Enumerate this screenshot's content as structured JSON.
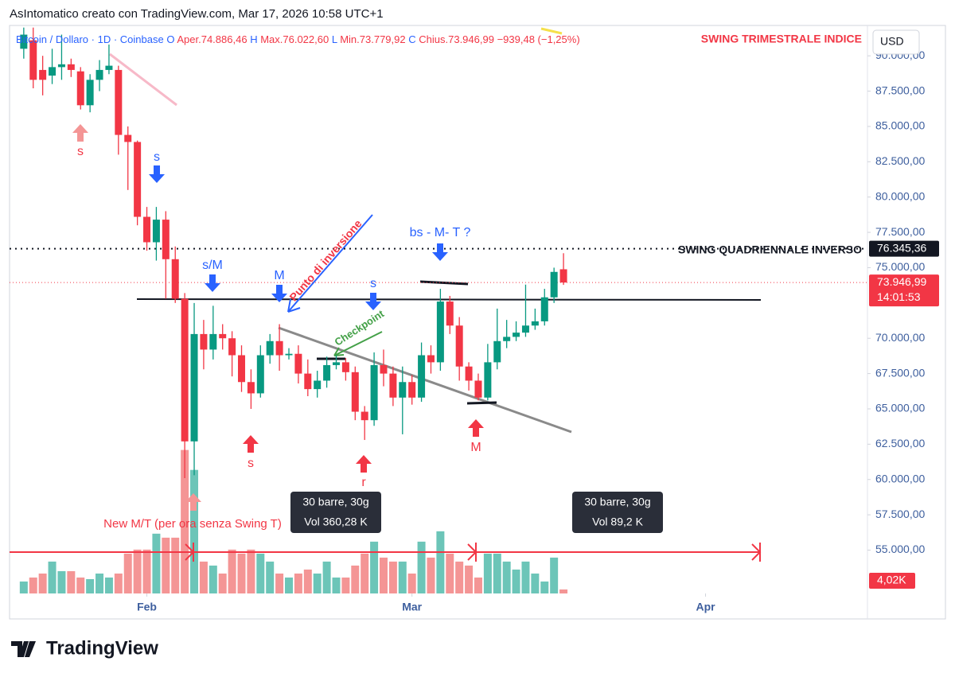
{
  "header": {
    "attribution": "AsIntomatico creato con TradingView.com, Mar 17, 2026 10:58 UTC+1"
  },
  "legend": {
    "symbol": "Bitcoin / Dollaro · 1D · Coinbase",
    "items": [
      "O",
      "Aper.74.886,46",
      "H",
      "Max.76.022,60",
      "L",
      "Min.73.779,92",
      "C",
      "Chius.73.946,99",
      "−939,48 (−1,25%)"
    ]
  },
  "currency": "USD",
  "chart_data": {
    "type": "candlestick",
    "x": [
      0,
      1,
      2,
      3,
      4,
      5,
      6,
      7,
      8,
      9,
      10,
      11,
      12,
      13,
      14,
      15,
      16,
      17,
      18,
      19,
      20,
      21,
      22,
      23,
      24,
      25,
      26,
      27,
      28,
      29,
      30,
      31,
      32,
      33,
      34,
      35,
      36,
      37,
      38,
      39,
      40,
      41,
      42,
      43,
      44,
      45,
      46,
      47,
      48,
      49,
      50,
      51,
      52,
      53,
      54,
      55,
      56,
      57
    ],
    "open": [
      90500,
      91100,
      89000,
      88600,
      89200,
      89400,
      88900,
      86500,
      88300,
      89000,
      89000,
      84400,
      83900,
      78600,
      76800,
      78400,
      75600,
      72800,
      62700,
      70300,
      69200,
      70300,
      70000,
      68800,
      66900,
      66100,
      68800,
      69800,
      68800,
      68900,
      67500,
      66400,
      67000,
      68100,
      68300,
      67600,
      64800,
      64200,
      68100,
      67500,
      65800,
      66900,
      65800,
      68800,
      68300,
      72600,
      70900,
      68000,
      67000,
      65800,
      68300,
      69800,
      70100,
      70400,
      70900,
      71200,
      72900,
      74886.46
    ],
    "high": [
      92000,
      92000,
      90000,
      90500,
      91500,
      89800,
      89200,
      88700,
      89700,
      90800,
      89300,
      85000,
      84000,
      79300,
      79300,
      79000,
      76500,
      73200,
      72500,
      71300,
      72300,
      71000,
      70500,
      69500,
      67800,
      69500,
      70300,
      71000,
      69300,
      69500,
      68500,
      67700,
      68700,
      68800,
      68600,
      68000,
      65200,
      69000,
      69200,
      68000,
      68000,
      67400,
      69700,
      69500,
      73500,
      73000,
      71500,
      68300,
      67500,
      69600,
      72100,
      71300,
      71200,
      73800,
      72100,
      73500,
      75000,
      76022.6
    ],
    "low": [
      89800,
      87700,
      87200,
      88000,
      88300,
      88500,
      86200,
      86000,
      87500,
      88700,
      83000,
      80500,
      78000,
      76200,
      75500,
      72800,
      72500,
      60100,
      60300,
      67800,
      68500,
      69200,
      67300,
      66200,
      65000,
      65800,
      68200,
      67700,
      68500,
      66800,
      65900,
      65800,
      66500,
      67800,
      67000,
      64200,
      62800,
      63800,
      66600,
      65200,
      63200,
      65300,
      65500,
      67500,
      67700,
      70300,
      67000,
      66300,
      65600,
      65600,
      67800,
      69300,
      69800,
      70100,
      70600,
      70900,
      72500,
      73779.92
    ],
    "close": [
      91500,
      88300,
      88300,
      89200,
      89400,
      89000,
      86500,
      88300,
      89000,
      89300,
      84400,
      83900,
      78600,
      76800,
      78400,
      75600,
      72800,
      62700,
      70300,
      69200,
      70300,
      70000,
      68800,
      66900,
      66100,
      68800,
      69800,
      68800,
      68900,
      67500,
      66400,
      67000,
      68100,
      68300,
      67600,
      64800,
      64200,
      68100,
      67500,
      65800,
      66900,
      65800,
      68800,
      68300,
      72600,
      70900,
      68000,
      67000,
      65800,
      68300,
      69800,
      70100,
      70400,
      70900,
      71200,
      72900,
      74700,
      73946.99
    ],
    "volume": [
      12,
      16,
      20,
      32,
      22.4,
      22.4,
      16,
      14.4,
      20,
      16,
      20,
      40,
      44,
      44,
      60,
      56,
      56,
      144,
      124,
      32,
      28,
      20,
      44,
      40,
      44,
      40,
      32,
      20,
      16,
      20,
      24,
      20,
      32,
      16,
      16,
      28,
      40,
      52,
      36,
      32,
      32,
      20,
      52,
      36,
      62.4,
      40,
      32,
      28,
      16,
      40,
      40,
      32,
      24,
      32,
      20,
      12,
      36,
      4.02
    ],
    "volume_label": "4,02K",
    "xlim": [
      -1.5,
      89.1
    ],
    "xticks": [
      {
        "value": 13,
        "label": "Feb"
      },
      {
        "value": 41,
        "label": "Mar"
      },
      {
        "value": 72,
        "label": "Apr"
      }
    ],
    "ylim": [
      51930,
      92150
    ],
    "yticks": [
      {
        "value": 55000,
        "label": "55.000,00"
      },
      {
        "value": 57500,
        "label": "57.500,00"
      },
      {
        "value": 60000,
        "label": "60.000,00"
      },
      {
        "value": 62500,
        "label": "62.500,00"
      },
      {
        "value": 65000,
        "label": "65.000,00"
      },
      {
        "value": 67500,
        "label": "67.500,00"
      },
      {
        "value": 70000,
        "label": "70.000,00"
      },
      {
        "value": 75000,
        "label": "75.000,00"
      },
      {
        "value": 77500,
        "label": "77.500,00"
      },
      {
        "value": 80000,
        "label": "80.000,00"
      },
      {
        "value": 82500,
        "label": "82.500,00"
      },
      {
        "value": 85000,
        "label": "85.000,00"
      },
      {
        "value": 87500,
        "label": "87.500,00"
      },
      {
        "value": 90000,
        "label": "90.000,00"
      }
    ],
    "y2lim": [
      0,
      570
    ],
    "colors": {
      "up": "#089981",
      "down": "#f23645",
      "volume_up": "#6cc5b8",
      "volume_down": "#f49595"
    },
    "price_lines": [
      {
        "value": 76345.36,
        "label": "76.345,36",
        "color": "#131722"
      },
      {
        "value": 73946.99,
        "label": "73.946,99",
        "color": "#f23645"
      }
    ],
    "countdown": "14:01:53"
  },
  "annotations": [
    "s",
    "s",
    "s/M",
    "M",
    "s",
    "bs - M- T ?",
    "s",
    "r",
    "M",
    "Punto di inversione",
    "Checkpoint",
    "New M/T (per ora senza Swing T)",
    "SWING TRIMESTRALE INDICE",
    "SWING QUADRIENNALE INVERSO"
  ],
  "boxes": [
    [
      "30 barre, 30g",
      "Vol 360,28 K"
    ],
    [
      "30 barre, 30g",
      "Vol 89,2 K"
    ]
  ],
  "footer": {
    "brand": "TradingView"
  }
}
